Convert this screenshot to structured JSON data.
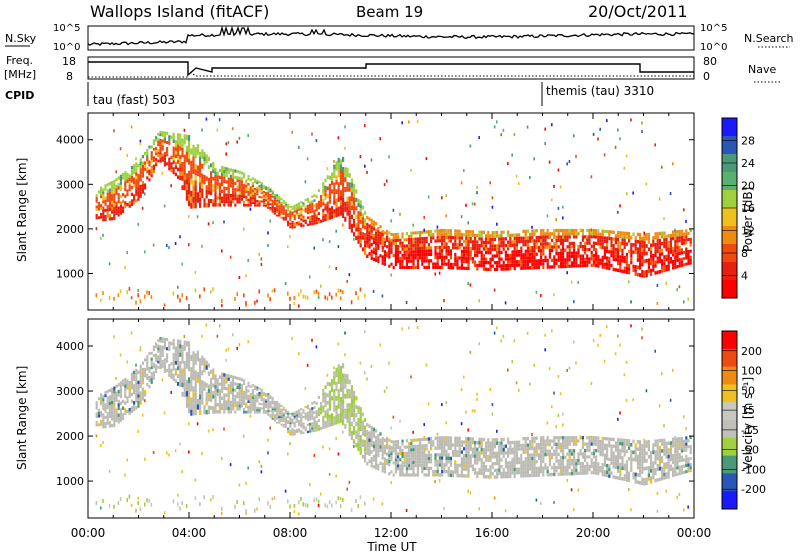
{
  "header": {
    "station": "Wallops Island (fitACF)",
    "beam": "Beam 19",
    "date": "20/Oct/2011"
  },
  "top_panels": {
    "nsky_label": "N.Sky",
    "nsky_ticks": [
      "10^5",
      "10^0"
    ],
    "nsearch_label": "N.Search",
    "nsearch_ticks": [
      "10^5",
      "10^0"
    ],
    "freq_label": "Freq.",
    "freq_unit": "[MHz]",
    "freq_ticks": [
      "18",
      "8"
    ],
    "nave_label": "Nave",
    "nave_ticks": [
      "80",
      "0"
    ],
    "cpid_label": "CPID",
    "cpid_entries": [
      "tau (fast) 503",
      "themis (tau) 3310"
    ]
  },
  "colors": {
    "power_scale": [
      "#1a1aff",
      "#2a56b8",
      "#4a9a78",
      "#5ab070",
      "#a0d040",
      "#f0c020",
      "#f08a10",
      "#f04a10",
      "#e82010",
      "#ff0000"
    ],
    "velocity_scale": [
      "#ff0000",
      "#f04a10",
      "#f08a10",
      "#f0c020",
      "#c8c8c0",
      "#c0c0b8",
      "#a0d040",
      "#4a9a78",
      "#2a56b8",
      "#1a1aff"
    ],
    "ground_scatter": "#bcbcb4"
  },
  "chart_data": [
    {
      "type": "heatmap",
      "name": "power",
      "xlabel": "",
      "ylabel": "Slant Range [km]",
      "colorbar_label": "Power [dB]",
      "colorbar_ticks": [
        "28",
        "24",
        "20",
        "16",
        "12",
        "8",
        "4"
      ],
      "ylim": [
        180,
        4600
      ],
      "y_ticks": [
        "4000",
        "3000",
        "2000",
        "1000"
      ],
      "xlim_hours": [
        0,
        24
      ],
      "x_ticks": [
        "00:00",
        "04:00",
        "08:00",
        "12:00",
        "16:00",
        "20:00",
        "00:00"
      ],
      "echo_bands_km": {
        "hours": [
          0.3,
          1,
          2,
          2.8,
          3.5,
          4,
          5,
          6,
          7,
          8,
          9,
          10,
          11,
          12,
          14,
          16,
          18,
          20,
          22,
          23.8
        ],
        "lower_edge": [
          2150,
          2200,
          2650,
          3500,
          3150,
          2450,
          2500,
          2500,
          2500,
          2000,
          2100,
          2300,
          1350,
          1100,
          1100,
          1050,
          1100,
          1150,
          900,
          1200
        ],
        "upper_edge": [
          2900,
          3100,
          3550,
          4200,
          4150,
          4100,
          3450,
          3300,
          3000,
          2500,
          2800,
          3700,
          2300,
          1900,
          2000,
          1950,
          2000,
          2000,
          1900,
          2000
        ]
      }
    },
    {
      "type": "heatmap",
      "name": "velocity",
      "xlabel": "Time UT",
      "ylabel": "Slant Range [km]",
      "colorbar_label": "Velocity [m s⁻¹]",
      "colorbar_ticks": [
        "200",
        "100",
        "50",
        "15",
        "-15",
        "-50",
        "-100",
        "-200"
      ],
      "ylim": [
        180,
        4600
      ],
      "y_ticks": [
        "4000",
        "3000",
        "2000",
        "1000"
      ],
      "xlim_hours": [
        0,
        24
      ],
      "x_ticks": [
        "00:00",
        "04:00",
        "08:00",
        "12:00",
        "16:00",
        "20:00",
        "00:00"
      ]
    }
  ]
}
